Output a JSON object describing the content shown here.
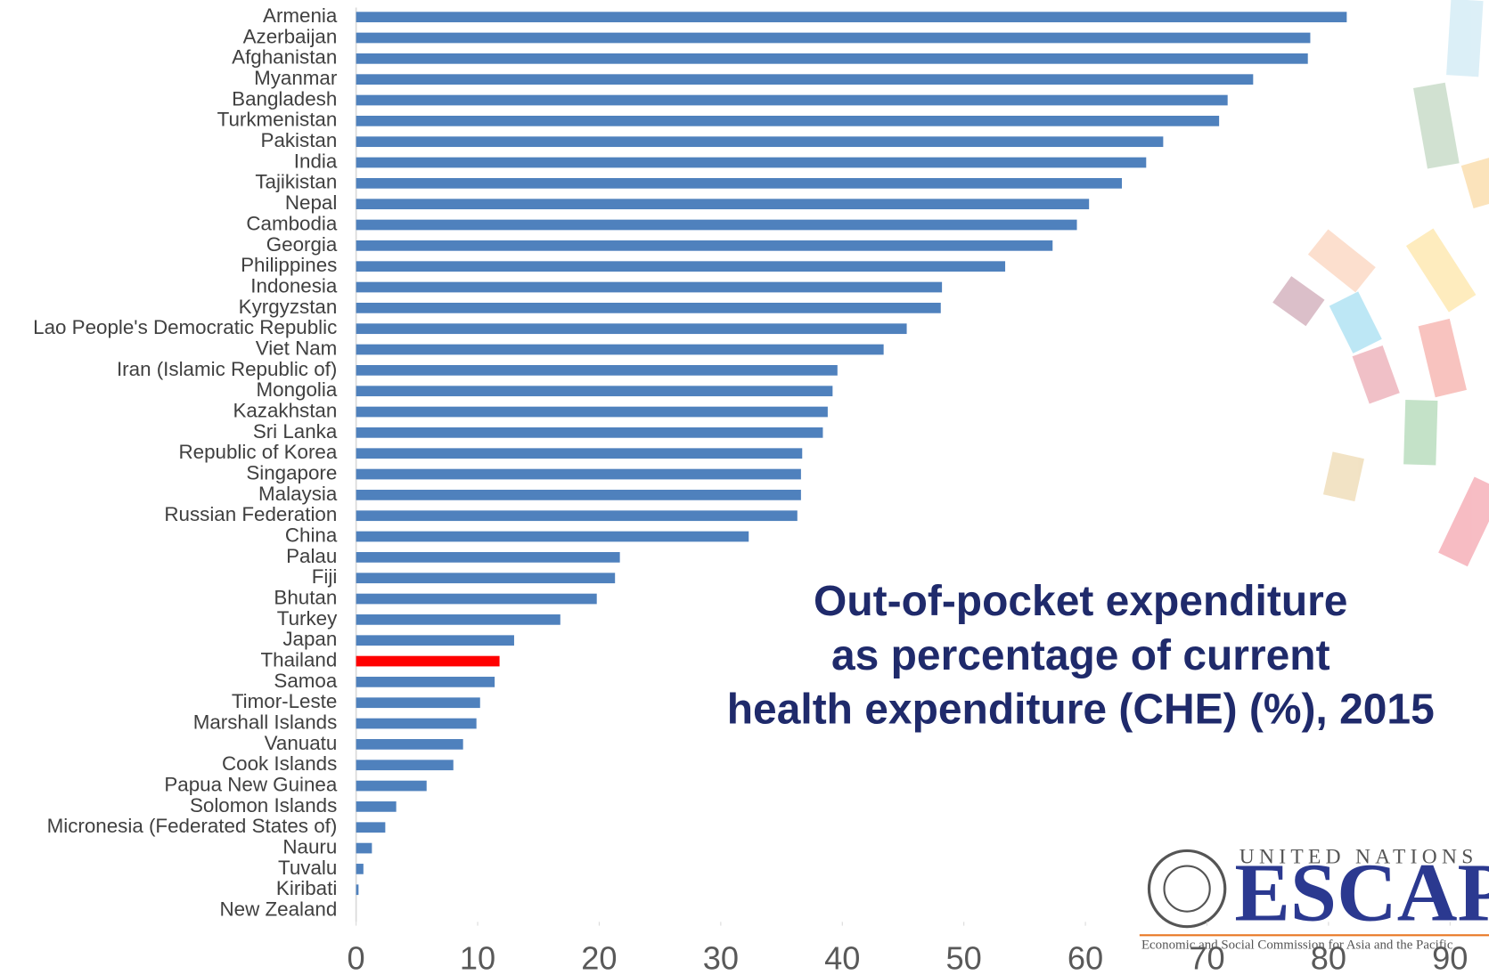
{
  "chart_data": {
    "type": "bar",
    "orientation": "horizontal",
    "title": [
      "Out-of-pocket expenditure",
      "as percentage of current",
      "health expenditure (CHE) (%), 2015"
    ],
    "categories": [
      "Armenia",
      "Azerbaijan",
      "Afghanistan",
      "Myanmar",
      "Bangladesh",
      "Turkmenistan",
      "Pakistan",
      "India",
      "Tajikistan",
      "Nepal",
      "Cambodia",
      "Georgia",
      "Philippines",
      "Indonesia",
      "Kyrgyzstan",
      "Lao People's Democratic Republic",
      "Viet Nam",
      "Iran (Islamic Republic of)",
      "Mongolia",
      "Kazakhstan",
      "Sri Lanka",
      "Republic of Korea",
      "Singapore",
      "Malaysia",
      "Russian Federation",
      "China",
      "Palau",
      "Fiji",
      "Bhutan",
      "Turkey",
      "Japan",
      "Thailand",
      "Samoa",
      "Timor-Leste",
      "Marshall Islands",
      "Vanuatu",
      "Cook Islands",
      "Papua New Guinea",
      "Solomon Islands",
      "Micronesia (Federated States of)",
      "Nauru",
      "Tuvalu",
      "Kiribati",
      "New Zealand"
    ],
    "values": [
      81.5,
      78.5,
      78.3,
      73.8,
      71.7,
      71.0,
      66.4,
      65.0,
      63.0,
      60.3,
      59.3,
      57.3,
      53.4,
      48.2,
      48.1,
      45.3,
      43.4,
      39.6,
      39.2,
      38.8,
      38.4,
      36.7,
      36.6,
      36.6,
      36.3,
      32.3,
      21.7,
      21.3,
      19.8,
      16.8,
      13.0,
      11.8,
      11.4,
      10.2,
      9.9,
      8.8,
      8.0,
      5.8,
      3.3,
      2.4,
      1.3,
      0.6,
      0.2,
      0
    ],
    "color": "#4f81bd",
    "highlight_index": 31,
    "highlight_color": "#ff0000",
    "xlim": [
      0,
      93
    ],
    "xticks": [
      0,
      10,
      20,
      30,
      40,
      50,
      60,
      70,
      80,
      90
    ],
    "grid": false
  },
  "logo": {
    "org": "UNITED NATIONS",
    "name": "ESCAP",
    "full_name": "Economic and Social Commission for Asia and the Pacific"
  }
}
